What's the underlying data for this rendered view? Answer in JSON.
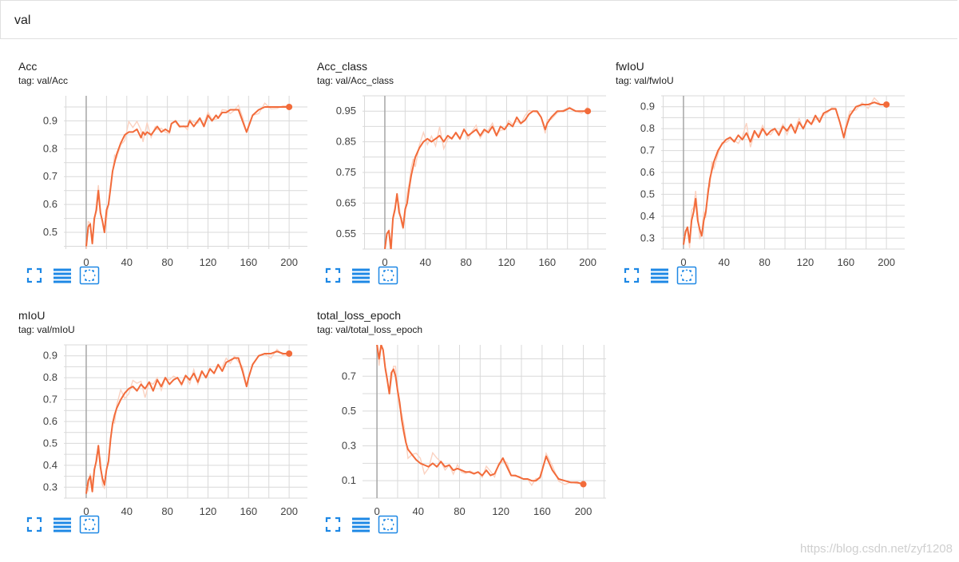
{
  "section": {
    "title": "val"
  },
  "watermark": "https://blog.csdn.net/zyf1208",
  "colors": {
    "line": "#f26b3a",
    "raw": "#fbd2c1",
    "grid": "#d9d9d9",
    "yaxis": "#a6a6a6"
  },
  "toolbar_icons": [
    "fullscreen-icon",
    "data-table-icon",
    "fit-domain-icon"
  ],
  "chart_data": [
    {
      "id": "acc",
      "type": "line",
      "title": "Acc",
      "tag": "tag: val/Acc",
      "xlim": [
        -22,
        218
      ],
      "ylim": [
        0.44,
        0.99
      ],
      "xticks": [
        0,
        40,
        80,
        120,
        160,
        200
      ],
      "yticks": [
        0.5,
        0.6,
        0.7,
        0.8,
        0.9
      ],
      "ytick_labels": [
        "0.5",
        "0.6",
        "0.7",
        "0.8",
        "0.9"
      ],
      "series": [
        {
          "x": [
            0,
            2,
            4,
            6,
            8,
            10,
            12,
            14,
            16,
            18,
            20,
            22,
            24,
            26,
            28,
            30,
            34,
            38,
            42,
            46,
            50,
            54,
            56,
            58,
            60,
            64,
            68,
            70,
            74,
            78,
            82,
            84,
            88,
            92,
            96,
            100,
            102,
            106,
            110,
            112,
            116,
            120,
            124,
            128,
            130,
            134,
            138,
            142,
            146,
            150,
            154,
            158,
            160,
            164,
            170,
            176,
            182,
            188,
            194,
            200
          ],
          "y": [
            0.45,
            0.52,
            0.53,
            0.46,
            0.55,
            0.58,
            0.65,
            0.57,
            0.54,
            0.5,
            0.58,
            0.6,
            0.66,
            0.72,
            0.75,
            0.78,
            0.82,
            0.85,
            0.86,
            0.86,
            0.87,
            0.84,
            0.86,
            0.85,
            0.86,
            0.85,
            0.87,
            0.88,
            0.86,
            0.87,
            0.86,
            0.89,
            0.9,
            0.88,
            0.88,
            0.88,
            0.9,
            0.88,
            0.9,
            0.91,
            0.88,
            0.92,
            0.9,
            0.92,
            0.91,
            0.93,
            0.93,
            0.94,
            0.94,
            0.94,
            0.9,
            0.86,
            0.88,
            0.92,
            0.94,
            0.95,
            0.95,
            0.95,
            0.95,
            0.95
          ]
        }
      ]
    },
    {
      "id": "acc_class",
      "type": "line",
      "title": "Acc_class",
      "tag": "tag: val/Acc_class",
      "xlim": [
        -22,
        218
      ],
      "ylim": [
        0.5,
        1.0
      ],
      "xticks": [
        0,
        40,
        80,
        120,
        160,
        200
      ],
      "yticks": [
        0.55,
        0.65,
        0.75,
        0.85,
        0.95
      ],
      "ytick_labels": [
        "0.55",
        "0.65",
        "0.75",
        "0.85",
        "0.95"
      ],
      "series": [
        {
          "x": [
            0,
            2,
            4,
            6,
            8,
            10,
            12,
            14,
            16,
            18,
            20,
            22,
            24,
            26,
            28,
            30,
            34,
            38,
            42,
            46,
            50,
            54,
            58,
            62,
            66,
            70,
            74,
            78,
            82,
            86,
            90,
            94,
            98,
            102,
            106,
            110,
            114,
            118,
            122,
            126,
            130,
            134,
            138,
            142,
            146,
            150,
            154,
            158,
            160,
            164,
            170,
            176,
            182,
            188,
            194,
            200
          ],
          "y": [
            0.5,
            0.55,
            0.56,
            0.5,
            0.6,
            0.63,
            0.68,
            0.62,
            0.6,
            0.57,
            0.63,
            0.65,
            0.7,
            0.74,
            0.77,
            0.8,
            0.83,
            0.85,
            0.86,
            0.85,
            0.86,
            0.87,
            0.85,
            0.87,
            0.86,
            0.88,
            0.86,
            0.89,
            0.87,
            0.88,
            0.89,
            0.87,
            0.89,
            0.88,
            0.9,
            0.87,
            0.9,
            0.89,
            0.91,
            0.9,
            0.93,
            0.91,
            0.92,
            0.94,
            0.95,
            0.95,
            0.93,
            0.89,
            0.91,
            0.93,
            0.95,
            0.95,
            0.96,
            0.95,
            0.95,
            0.95
          ]
        }
      ]
    },
    {
      "id": "fwiou",
      "type": "line",
      "title": "fwIoU",
      "tag": "tag: val/fwIoU",
      "xlim": [
        -22,
        218
      ],
      "ylim": [
        0.25,
        0.95
      ],
      "xticks": [
        0,
        40,
        80,
        120,
        160,
        200
      ],
      "yticks": [
        0.3,
        0.4,
        0.5,
        0.6,
        0.7,
        0.8,
        0.9
      ],
      "ytick_labels": [
        "0.3",
        "0.4",
        "0.5",
        "0.6",
        "0.7",
        "0.8",
        "0.9"
      ],
      "series": [
        {
          "x": [
            0,
            2,
            4,
            6,
            8,
            10,
            12,
            14,
            16,
            18,
            20,
            22,
            24,
            26,
            28,
            30,
            34,
            38,
            42,
            46,
            50,
            54,
            58,
            62,
            66,
            70,
            74,
            78,
            82,
            86,
            90,
            94,
            98,
            102,
            106,
            110,
            114,
            118,
            122,
            126,
            130,
            134,
            138,
            142,
            146,
            150,
            154,
            158,
            160,
            164,
            170,
            176,
            182,
            188,
            194,
            200
          ],
          "y": [
            0.27,
            0.33,
            0.35,
            0.28,
            0.38,
            0.42,
            0.48,
            0.38,
            0.34,
            0.31,
            0.38,
            0.42,
            0.5,
            0.57,
            0.61,
            0.65,
            0.7,
            0.73,
            0.75,
            0.76,
            0.74,
            0.77,
            0.75,
            0.78,
            0.74,
            0.79,
            0.76,
            0.8,
            0.77,
            0.79,
            0.8,
            0.77,
            0.81,
            0.79,
            0.82,
            0.78,
            0.83,
            0.8,
            0.84,
            0.82,
            0.86,
            0.83,
            0.87,
            0.88,
            0.89,
            0.89,
            0.83,
            0.76,
            0.8,
            0.86,
            0.9,
            0.91,
            0.91,
            0.92,
            0.91,
            0.91
          ]
        }
      ]
    },
    {
      "id": "miou",
      "type": "line",
      "title": "mIoU",
      "tag": "tag: val/mIoU",
      "xlim": [
        -22,
        218
      ],
      "ylim": [
        0.25,
        0.95
      ],
      "xticks": [
        0,
        40,
        80,
        120,
        160,
        200
      ],
      "yticks": [
        0.3,
        0.4,
        0.5,
        0.6,
        0.7,
        0.8,
        0.9
      ],
      "ytick_labels": [
        "0.3",
        "0.4",
        "0.5",
        "0.6",
        "0.7",
        "0.8",
        "0.9"
      ],
      "series": [
        {
          "x": [
            0,
            2,
            4,
            6,
            8,
            10,
            12,
            14,
            16,
            18,
            20,
            22,
            24,
            26,
            28,
            30,
            34,
            38,
            42,
            46,
            50,
            54,
            58,
            62,
            66,
            70,
            74,
            78,
            82,
            86,
            90,
            94,
            98,
            102,
            106,
            110,
            114,
            118,
            122,
            126,
            130,
            134,
            138,
            142,
            146,
            150,
            154,
            158,
            160,
            164,
            170,
            176,
            182,
            188,
            194,
            200
          ],
          "y": [
            0.27,
            0.33,
            0.35,
            0.28,
            0.38,
            0.42,
            0.49,
            0.39,
            0.34,
            0.31,
            0.38,
            0.42,
            0.52,
            0.59,
            0.63,
            0.66,
            0.7,
            0.73,
            0.75,
            0.76,
            0.74,
            0.77,
            0.75,
            0.78,
            0.74,
            0.79,
            0.76,
            0.8,
            0.77,
            0.79,
            0.8,
            0.77,
            0.81,
            0.79,
            0.82,
            0.78,
            0.83,
            0.8,
            0.84,
            0.82,
            0.86,
            0.83,
            0.87,
            0.88,
            0.89,
            0.89,
            0.83,
            0.76,
            0.8,
            0.86,
            0.9,
            0.91,
            0.91,
            0.92,
            0.91,
            0.91
          ]
        }
      ]
    },
    {
      "id": "total_loss_epoch",
      "type": "line",
      "title": "total_loss_epoch",
      "tag": "tag: val/total_loss_epoch",
      "xlim": [
        -14,
        222
      ],
      "ylim": [
        0.0,
        0.88
      ],
      "xticks": [
        0,
        40,
        80,
        120,
        160,
        200
      ],
      "yticks": [
        0.1,
        0.3,
        0.5,
        0.7
      ],
      "ytick_labels": [
        "0.1",
        "0.3",
        "0.5",
        "0.7"
      ],
      "series": [
        {
          "x": [
            0,
            2,
            4,
            6,
            8,
            10,
            12,
            14,
            16,
            18,
            20,
            22,
            24,
            26,
            28,
            30,
            34,
            38,
            42,
            46,
            50,
            54,
            58,
            62,
            66,
            70,
            74,
            78,
            82,
            86,
            90,
            94,
            98,
            102,
            106,
            110,
            114,
            118,
            122,
            126,
            130,
            134,
            138,
            142,
            146,
            150,
            154,
            158,
            160,
            164,
            170,
            176,
            182,
            188,
            194,
            200
          ],
          "y": [
            0.88,
            0.8,
            0.88,
            0.85,
            0.75,
            0.68,
            0.6,
            0.72,
            0.74,
            0.7,
            0.62,
            0.55,
            0.45,
            0.38,
            0.32,
            0.28,
            0.25,
            0.22,
            0.2,
            0.19,
            0.18,
            0.2,
            0.18,
            0.21,
            0.18,
            0.19,
            0.16,
            0.17,
            0.16,
            0.15,
            0.15,
            0.14,
            0.15,
            0.13,
            0.16,
            0.13,
            0.14,
            0.19,
            0.23,
            0.18,
            0.13,
            0.13,
            0.12,
            0.11,
            0.11,
            0.1,
            0.1,
            0.12,
            0.16,
            0.24,
            0.16,
            0.11,
            0.1,
            0.09,
            0.09,
            0.08
          ]
        }
      ]
    }
  ]
}
